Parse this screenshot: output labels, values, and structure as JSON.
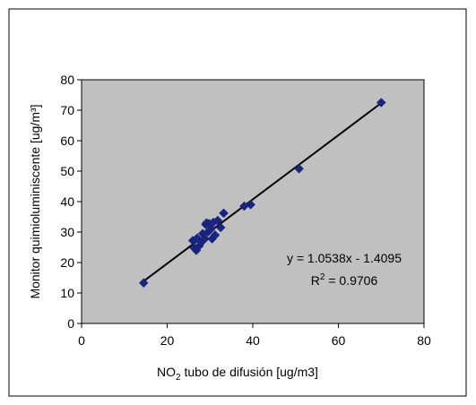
{
  "chart_data": {
    "type": "scatter",
    "title": "",
    "xlabel": {
      "prefix": "NO",
      "subscript": "2",
      "rest": " tubo de difusión  [ug/m3]"
    },
    "ylabel": "Monitor quimioluminiscente [ug/m³]",
    "xlim": [
      0,
      80
    ],
    "ylim": [
      0,
      80
    ],
    "xticks": [
      "0",
      "20",
      "40",
      "60",
      "80"
    ],
    "yticks": [
      "0",
      "10",
      "20",
      "30",
      "40",
      "50",
      "60",
      "70",
      "80"
    ],
    "grid": false,
    "legend": "none",
    "series": [
      {
        "marker": "diamond",
        "color": "#1a237e",
        "x": [
          14.5,
          26.0,
          26.3,
          26.8,
          27.0,
          27.5,
          28.0,
          28.3,
          28.8,
          29.0,
          29.2,
          29.5,
          29.8,
          30.2,
          30.5,
          30.8,
          31.2,
          31.8,
          32.5,
          33.2,
          38.0,
          39.5,
          50.8,
          70.0
        ],
        "y": [
          13.3,
          27.2,
          24.8,
          24.0,
          28.0,
          25.5,
          26.7,
          29.5,
          27.8,
          32.5,
          33.0,
          30.0,
          32.8,
          31.0,
          27.8,
          33.2,
          29.0,
          33.8,
          31.5,
          36.2,
          38.5,
          39.0,
          50.8,
          72.5
        ]
      }
    ],
    "trendline": {
      "slope": 1.0538,
      "intercept": -1.4095,
      "color": "#000000",
      "equation": "y = 1.0538x - 1.4095",
      "r2": {
        "prefix": "R",
        "superscript": "2",
        "rest": " = 0.9706"
      }
    },
    "colors": {
      "plot_area": "#c0c0c0",
      "border": "#000000"
    }
  }
}
